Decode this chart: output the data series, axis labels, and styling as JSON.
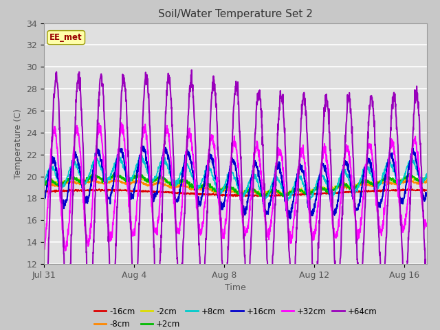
{
  "title": "Soil/Water Temperature Set 2",
  "xlabel": "Time",
  "ylabel": "Temperature (C)",
  "ylim": [
    12,
    34
  ],
  "yticks": [
    12,
    14,
    16,
    18,
    20,
    22,
    24,
    26,
    28,
    30,
    32,
    34
  ],
  "xtick_labels": [
    "Jul 31",
    "Aug 4",
    "Aug 8",
    "Aug 12",
    "Aug 16"
  ],
  "xtick_pos": [
    0,
    4,
    8,
    12,
    16
  ],
  "xlim": [
    0,
    17
  ],
  "legend_label": "EE_met",
  "colors": {
    "-16cm": "#dd0000",
    "-8cm": "#ff8800",
    "-2cm": "#dddd00",
    "+2cm": "#00bb00",
    "+8cm": "#00cccc",
    "+16cm": "#0000cc",
    "+32cm": "#ff00ff",
    "+64cm": "#9900bb"
  },
  "fig_bg": "#c8c8c8",
  "ax_bg": "#e0e0e0",
  "grid_color": "#ffffff",
  "title_color": "#333333",
  "tick_color": "#555555",
  "spine_color": "#999999"
}
